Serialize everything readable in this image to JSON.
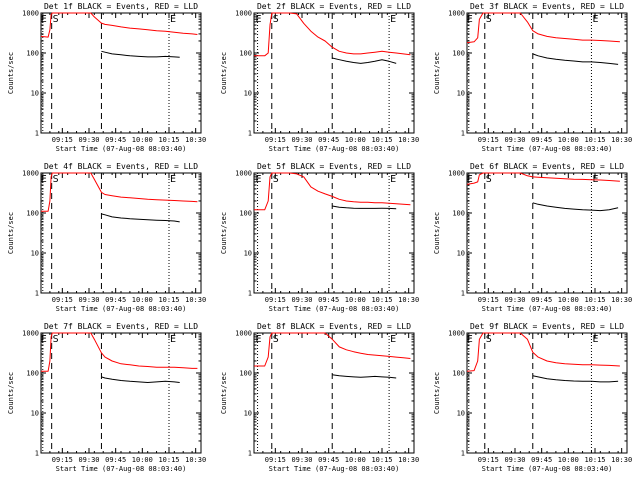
{
  "figure": {
    "common": {
      "ylabel": "Counts/sec",
      "xlabel": "Start Time (07-Aug-08 08:03:40)",
      "xticks": [
        "09:15",
        "09:30",
        "09:45",
        "10:00",
        "10:15",
        "10:30"
      ],
      "yticks": [
        "1",
        "10",
        "100",
        "1000"
      ],
      "markers": {
        "E": "E",
        "S": "S"
      }
    },
    "colors": {
      "events": "#000000",
      "lld": "#ff0000",
      "axes": "#000000"
    }
  },
  "chart_data": [
    {
      "type": "line",
      "title": "Det 1f BLACK = Events, RED = LLD",
      "xlabel": "Start Time (07-Aug-08 08:03:40)",
      "ylabel": "Counts/sec",
      "x_range_min": [
        0,
        90
      ],
      "ylim": [
        1,
        1000
      ],
      "log_y": true,
      "grid": false,
      "vlines_dashed_min": [
        6,
        34
      ],
      "vlines_dotted_min": [
        1,
        72
      ],
      "series": [
        {
          "color": "#ff0000",
          "x": [
            0,
            4,
            5,
            5.7,
            6.3,
            28,
            30,
            34,
            36,
            40,
            45,
            50,
            55,
            60,
            65,
            70,
            75,
            80,
            85,
            88
          ],
          "y": [
            260,
            250,
            380,
            900,
            1000,
            1000,
            800,
            560,
            520,
            490,
            450,
            420,
            400,
            380,
            360,
            350,
            330,
            310,
            300,
            290
          ]
        },
        {
          "color": "#000000",
          "x": [
            34,
            36,
            40,
            45,
            50,
            55,
            60,
            65,
            70,
            75,
            78
          ],
          "y": [
            110,
            105,
            95,
            90,
            85,
            82,
            80,
            80,
            82,
            80,
            78
          ]
        }
      ]
    },
    {
      "type": "line",
      "title": "Det 2f BLACK = Events, RED = LLD",
      "xlabel": "Start Time (07-Aug-08 08:03:40)",
      "ylabel": "Counts/sec",
      "x_range_min": [
        0,
        90
      ],
      "ylim": [
        1,
        1000
      ],
      "log_y": true,
      "grid": false,
      "vlines_dashed_min": [
        10,
        44
      ],
      "vlines_dotted_min": [
        2,
        76
      ],
      "series": [
        {
          "color": "#ff0000",
          "x": [
            0,
            6,
            8,
            9,
            10,
            20,
            24,
            28,
            32,
            36,
            40,
            44,
            48,
            52,
            56,
            60,
            64,
            68,
            72,
            76,
            80,
            84,
            88
          ],
          "y": [
            85,
            85,
            100,
            500,
            1000,
            1000,
            950,
            550,
            350,
            250,
            200,
            140,
            110,
            100,
            95,
            95,
            100,
            105,
            110,
            105,
            100,
            95,
            90
          ]
        },
        {
          "color": "#000000",
          "x": [
            44,
            48,
            52,
            56,
            60,
            64,
            68,
            72,
            76,
            80
          ],
          "y": [
            75,
            68,
            62,
            58,
            55,
            58,
            62,
            68,
            62,
            55
          ]
        }
      ]
    },
    {
      "type": "line",
      "title": "Det 3f BLACK = Events, RED = LLD",
      "xlabel": "Start Time (07-Aug-08 08:03:40)",
      "ylabel": "Counts/sec",
      "x_range_min": [
        0,
        90
      ],
      "ylim": [
        1,
        1000
      ],
      "log_y": true,
      "grid": false,
      "vlines_dashed_min": [
        10,
        37
      ],
      "vlines_dotted_min": [
        1,
        70
      ],
      "series": [
        {
          "color": "#ff0000",
          "x": [
            0,
            4,
            6,
            7,
            9,
            30,
            34,
            37,
            40,
            45,
            50,
            55,
            60,
            65,
            70,
            75,
            80,
            86
          ],
          "y": [
            180,
            190,
            240,
            700,
            1000,
            1000,
            600,
            360,
            300,
            260,
            240,
            230,
            220,
            210,
            210,
            205,
            200,
            190
          ]
        },
        {
          "color": "#000000",
          "x": [
            37,
            40,
            45,
            50,
            55,
            60,
            65,
            70,
            75,
            80,
            85
          ],
          "y": [
            95,
            85,
            75,
            70,
            66,
            63,
            60,
            60,
            58,
            55,
            52
          ]
        }
      ]
    },
    {
      "type": "line",
      "title": "Det 4f BLACK = Events, RED = LLD",
      "xlabel": "Start Time (07-Aug-08 08:03:40)",
      "ylabel": "Counts/sec",
      "x_range_min": [
        0,
        90
      ],
      "ylim": [
        1,
        1000
      ],
      "log_y": true,
      "grid": false,
      "vlines_dashed_min": [
        6,
        34
      ],
      "vlines_dotted_min": [
        1,
        72
      ],
      "series": [
        {
          "color": "#ff0000",
          "x": [
            0,
            4,
            5,
            5.7,
            6.3,
            28,
            30,
            34,
            36,
            40,
            45,
            50,
            55,
            60,
            65,
            70,
            75,
            80,
            85,
            88
          ],
          "y": [
            110,
            110,
            200,
            800,
            1000,
            1000,
            700,
            330,
            290,
            270,
            250,
            240,
            230,
            220,
            215,
            210,
            205,
            200,
            195,
            190
          ]
        },
        {
          "color": "#000000",
          "x": [
            34,
            36,
            40,
            45,
            50,
            55,
            60,
            65,
            70,
            75,
            78
          ],
          "y": [
            95,
            90,
            80,
            75,
            72,
            70,
            68,
            66,
            65,
            63,
            60
          ]
        }
      ]
    },
    {
      "type": "line",
      "title": "Det 5f BLACK = Events, RED = LLD",
      "xlabel": "Start Time (07-Aug-08 08:03:40)",
      "ylabel": "Counts/sec",
      "x_range_min": [
        0,
        90
      ],
      "ylim": [
        1,
        1000
      ],
      "log_y": true,
      "grid": false,
      "vlines_dashed_min": [
        10,
        44
      ],
      "vlines_dotted_min": [
        2,
        76
      ],
      "series": [
        {
          "color": "#ff0000",
          "x": [
            0,
            6,
            8,
            9,
            10,
            20,
            24,
            28,
            32,
            36,
            40,
            44,
            48,
            52,
            56,
            60,
            64,
            68,
            72,
            76,
            80,
            84,
            88
          ],
          "y": [
            120,
            120,
            200,
            800,
            1000,
            1000,
            950,
            800,
            450,
            350,
            300,
            260,
            220,
            200,
            190,
            185,
            185,
            180,
            180,
            175,
            170,
            165,
            160
          ]
        },
        {
          "color": "#000000",
          "x": [
            44,
            48,
            52,
            56,
            60,
            64,
            68,
            72,
            76,
            80
          ],
          "y": [
            150,
            140,
            135,
            132,
            130,
            130,
            130,
            132,
            130,
            128
          ]
        }
      ]
    },
    {
      "type": "line",
      "title": "Det 6f BLACK = Events, RED = LLD",
      "xlabel": "Start Time (07-Aug-08 08:03:40)",
      "ylabel": "Counts/sec",
      "x_range_min": [
        0,
        90
      ],
      "ylim": [
        1,
        1000
      ],
      "log_y": true,
      "grid": false,
      "vlines_dashed_min": [
        10,
        37
      ],
      "vlines_dotted_min": [
        1,
        70
      ],
      "series": [
        {
          "color": "#ff0000",
          "x": [
            0,
            4,
            6,
            7,
            9,
            30,
            34,
            37,
            40,
            45,
            50,
            55,
            60,
            65,
            70,
            75,
            80,
            86
          ],
          "y": [
            520,
            560,
            600,
            900,
            1000,
            1000,
            850,
            800,
            780,
            760,
            740,
            720,
            700,
            690,
            680,
            670,
            650,
            620
          ]
        },
        {
          "color": "#000000",
          "x": [
            37,
            40,
            45,
            50,
            55,
            60,
            65,
            70,
            75,
            80,
            85
          ],
          "y": [
            180,
            165,
            150,
            140,
            130,
            125,
            120,
            118,
            115,
            120,
            135
          ]
        }
      ]
    },
    {
      "type": "line",
      "title": "Det 7f BLACK = Events, RED = LLD",
      "xlabel": "Start Time (07-Aug-08 08:03:40)",
      "ylabel": "Counts/sec",
      "x_range_min": [
        0,
        90
      ],
      "ylim": [
        1,
        1000
      ],
      "log_y": true,
      "grid": false,
      "vlines_dashed_min": [
        6,
        34
      ],
      "vlines_dotted_min": [
        1,
        72
      ],
      "series": [
        {
          "color": "#ff0000",
          "x": [
            0,
            4,
            5,
            5.7,
            6.3,
            28,
            30,
            34,
            36,
            40,
            45,
            50,
            55,
            60,
            65,
            70,
            75,
            80,
            85,
            88
          ],
          "y": [
            110,
            110,
            200,
            800,
            1000,
            1000,
            700,
            320,
            250,
            200,
            170,
            160,
            150,
            145,
            140,
            140,
            140,
            135,
            130,
            130
          ]
        },
        {
          "color": "#000000",
          "x": [
            34,
            36,
            40,
            45,
            50,
            55,
            60,
            65,
            70,
            75,
            78
          ],
          "y": [
            80,
            75,
            70,
            65,
            62,
            60,
            58,
            60,
            62,
            60,
            58
          ]
        }
      ]
    },
    {
      "type": "line",
      "title": "Det 8f BLACK = Events, RED = LLD",
      "xlabel": "Start Time (07-Aug-08 08:03:40)",
      "ylabel": "Counts/sec",
      "x_range_min": [
        0,
        90
      ],
      "ylim": [
        1,
        1000
      ],
      "log_y": true,
      "grid": false,
      "vlines_dashed_min": [
        10,
        44
      ],
      "vlines_dotted_min": [
        2,
        76
      ],
      "series": [
        {
          "color": "#ff0000",
          "x": [
            0,
            6,
            8,
            9,
            10,
            20,
            24,
            28,
            32,
            36,
            40,
            44,
            48,
            52,
            56,
            60,
            64,
            68,
            72,
            76,
            80,
            84,
            88
          ],
          "y": [
            150,
            150,
            250,
            800,
            1000,
            1000,
            1000,
            1000,
            1000,
            1000,
            1000,
            700,
            450,
            380,
            340,
            310,
            290,
            280,
            270,
            260,
            250,
            240,
            230
          ]
        },
        {
          "color": "#000000",
          "x": [
            44,
            48,
            52,
            56,
            60,
            64,
            68,
            72,
            76,
            80
          ],
          "y": [
            90,
            85,
            82,
            80,
            78,
            80,
            82,
            80,
            78,
            75
          ]
        }
      ]
    },
    {
      "type": "line",
      "title": "Det 9f BLACK = Events, RED = LLD",
      "xlabel": "Start Time (07-Aug-08 08:03:40)",
      "ylabel": "Counts/sec",
      "x_range_min": [
        0,
        90
      ],
      "ylim": [
        1,
        1000
      ],
      "log_y": true,
      "grid": false,
      "vlines_dashed_min": [
        10,
        37
      ],
      "vlines_dotted_min": [
        1,
        70
      ],
      "series": [
        {
          "color": "#ff0000",
          "x": [
            0,
            4,
            6,
            7,
            9,
            30,
            34,
            37,
            40,
            45,
            50,
            55,
            60,
            65,
            70,
            75,
            80,
            86
          ],
          "y": [
            110,
            115,
            200,
            700,
            1000,
            1000,
            700,
            330,
            250,
            200,
            180,
            170,
            165,
            160,
            160,
            158,
            155,
            150
          ]
        },
        {
          "color": "#000000",
          "x": [
            37,
            40,
            45,
            50,
            55,
            60,
            65,
            70,
            75,
            80,
            85
          ],
          "y": [
            85,
            80,
            72,
            68,
            65,
            63,
            62,
            62,
            60,
            60,
            62
          ]
        }
      ]
    }
  ]
}
